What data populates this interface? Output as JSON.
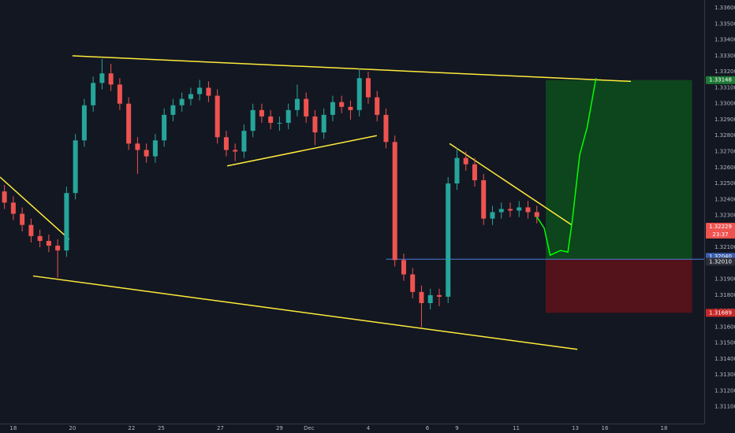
{
  "chart_data": {
    "type": "candlestick",
    "up_color": "#26a69a",
    "down_color": "#ef5350",
    "x": [
      -0.3,
      0,
      0.3,
      0.6,
      0.9,
      1.2,
      1.5,
      1.8,
      2.1,
      2.4,
      2.7,
      3,
      3.3,
      3.6,
      3.9,
      4.2,
      4.5,
      4.8,
      5.1,
      5.4,
      5.7,
      6,
      6.3,
      6.6,
      6.9,
      7.2,
      7.5,
      7.8,
      8.1,
      8.4,
      8.7,
      9,
      9.3,
      9.6,
      9.9,
      10.2,
      10.5,
      10.8,
      11.1,
      11.4,
      11.7,
      12,
      12.3,
      12.6,
      12.9,
      13.2,
      13.5,
      13.8,
      14.1,
      14.4,
      14.7,
      15,
      15.3,
      15.6,
      15.9,
      16.2,
      16.5,
      16.8,
      17.1,
      17.4,
      17.7
    ],
    "open": [
      1.3245,
      1.3238,
      1.3231,
      1.3224,
      1.3217,
      1.3214,
      1.3211,
      1.3208,
      1.3244,
      1.3277,
      1.3299,
      1.3313,
      1.3319,
      1.3312,
      1.33,
      1.3275,
      1.3271,
      1.3267,
      1.3277,
      1.3293,
      1.3299,
      1.3303,
      1.3306,
      1.331,
      1.3305,
      1.3279,
      1.3271,
      1.327,
      1.3283,
      1.3296,
      1.3292,
      1.3288,
      1.3288,
      1.3296,
      1.3303,
      1.3292,
      1.3282,
      1.3293,
      1.3301,
      1.3298,
      1.3296,
      1.3316,
      1.3304,
      1.3293,
      1.3276,
      1.3202,
      1.3193,
      1.3182,
      1.3175,
      1.318,
      1.3179,
      1.325,
      1.3266,
      1.3262,
      1.3252,
      1.3228,
      1.3232,
      1.3234,
      1.3233,
      1.3235,
      1.3232
    ],
    "high": [
      1.3249,
      1.3242,
      1.3235,
      1.3228,
      1.3221,
      1.3218,
      1.3215,
      1.3248,
      1.3281,
      1.3303,
      1.3317,
      1.3328,
      1.3325,
      1.3316,
      1.3304,
      1.3279,
      1.3275,
      1.3281,
      1.3297,
      1.3303,
      1.3307,
      1.331,
      1.3315,
      1.3314,
      1.3309,
      1.3283,
      1.3275,
      1.3287,
      1.33,
      1.33,
      1.3296,
      1.3292,
      1.33,
      1.3312,
      1.3307,
      1.3296,
      1.3297,
      1.3305,
      1.3305,
      1.3302,
      1.3322,
      1.332,
      1.3308,
      1.3297,
      1.328,
      1.3206,
      1.3197,
      1.3186,
      1.3184,
      1.3184,
      1.3254,
      1.3272,
      1.327,
      1.3266,
      1.3256,
      1.3236,
      1.3238,
      1.3238,
      1.3239,
      1.3239,
      1.3236
    ],
    "low": [
      1.3234,
      1.3227,
      1.322,
      1.3213,
      1.321,
      1.3207,
      1.3191,
      1.3204,
      1.324,
      1.3273,
      1.3295,
      1.3309,
      1.3308,
      1.3296,
      1.3271,
      1.3256,
      1.3263,
      1.3263,
      1.3273,
      1.3289,
      1.3295,
      1.3299,
      1.3302,
      1.3301,
      1.3275,
      1.3267,
      1.3264,
      1.3266,
      1.3279,
      1.3288,
      1.3284,
      1.3283,
      1.3284,
      1.3292,
      1.3288,
      1.3274,
      1.3278,
      1.3289,
      1.3294,
      1.329,
      1.3292,
      1.33,
      1.3289,
      1.3272,
      1.3198,
      1.3189,
      1.3178,
      1.316,
      1.3171,
      1.3173,
      1.3175,
      1.3246,
      1.3258,
      1.3248,
      1.3224,
      1.3224,
      1.3228,
      1.3229,
      1.3229,
      1.3228,
      1.3225
    ],
    "close": [
      1.3238,
      1.3231,
      1.3224,
      1.3217,
      1.3214,
      1.3211,
      1.3208,
      1.3244,
      1.3277,
      1.3299,
      1.3313,
      1.3319,
      1.3312,
      1.33,
      1.3275,
      1.3271,
      1.3267,
      1.3277,
      1.3293,
      1.3299,
      1.3303,
      1.3306,
      1.331,
      1.3305,
      1.3279,
      1.3271,
      1.327,
      1.3283,
      1.3296,
      1.3292,
      1.3288,
      1.3288,
      1.3296,
      1.3303,
      1.3292,
      1.3282,
      1.3293,
      1.3301,
      1.3298,
      1.3296,
      1.3316,
      1.3304,
      1.3293,
      1.3276,
      1.3202,
      1.3193,
      1.3182,
      1.3175,
      1.318,
      1.3179,
      1.325,
      1.3266,
      1.3262,
      1.3252,
      1.3228,
      1.3232,
      1.3234,
      1.3233,
      1.3235,
      1.3232,
      1.3229
    ],
    "projection": {
      "color": "#00ff00",
      "x": [
        17.7,
        17.95,
        18.15,
        18.5,
        18.75,
        18.9,
        19.15,
        19.4,
        19.7
      ],
      "values": [
        1.3229,
        1.3222,
        1.3205,
        1.3208,
        1.3207,
        1.3227,
        1.3268,
        1.3285,
        1.3316
      ]
    },
    "trend_lines": {
      "color": "#ffeb3b",
      "segments": [
        {
          "x": [
            -0.45,
            1.89
          ],
          "y": [
            1.3254,
            1.3215
          ]
        },
        {
          "x": [
            2.0,
            20.88
          ],
          "y": [
            1.333,
            1.3314
          ]
        },
        {
          "x": [
            7.23,
            12.29
          ],
          "y": [
            1.3261,
            1.328
          ]
        },
        {
          "x": [
            0.67,
            19.07
          ],
          "y": [
            1.3192,
            1.3146
          ]
        },
        {
          "x": [
            14.75,
            18.88
          ],
          "y": [
            1.3275,
            1.3224
          ]
        }
      ]
    },
    "position": {
      "x": [
        18.0,
        22.95
      ],
      "line_from": 12.6,
      "target": 1.33148,
      "entry": 1.32025,
      "stop": 1.31689,
      "profit_color": "#0d4a1c",
      "loss_color": "#5c121a",
      "entry_color": "#4c7bd9"
    },
    "price_labels": [
      {
        "value": 1.33148,
        "label": "1.33148",
        "color": "#1e7a36"
      },
      {
        "value": 1.32229,
        "label": "1.32229",
        "color": "#ef5350"
      },
      {
        "value": 1.32025,
        "label": "1.32025",
        "color": "#2962ff"
      },
      {
        "value": 1.3204,
        "label": "1.32040",
        "color": "#3b5fb0"
      },
      {
        "value": 1.3201,
        "label": "1.32010",
        "color": "#2a2e39"
      },
      {
        "value": 1.31689,
        "label": "1.31689",
        "color": "#c62828"
      }
    ],
    "countdown": "23:37",
    "xlim": [
      -0.45,
      23.36
    ],
    "ylim": [
      1.30995,
      1.3365
    ],
    "xticks": [
      {
        "value": 0,
        "label": "18"
      },
      {
        "value": 2,
        "label": "20"
      },
      {
        "value": 4,
        "label": "22"
      },
      {
        "value": 5,
        "label": "25"
      },
      {
        "value": 7,
        "label": "27"
      },
      {
        "value": 9,
        "label": "29"
      },
      {
        "value": 10,
        "label": "Dec"
      },
      {
        "value": 12,
        "label": "4"
      },
      {
        "value": 14,
        "label": "6"
      },
      {
        "value": 15,
        "label": "9"
      },
      {
        "value": 17,
        "label": "11"
      },
      {
        "value": 19,
        "label": "13"
      },
      {
        "value": 20,
        "label": "16"
      },
      {
        "value": 22,
        "label": "18"
      }
    ],
    "yticks": [
      {
        "value": 1.311,
        "label": "1.31100"
      },
      {
        "value": 1.312,
        "label": "1.31200"
      },
      {
        "value": 1.313,
        "label": "1.31300"
      },
      {
        "value": 1.314,
        "label": "1.31400"
      },
      {
        "value": 1.315,
        "label": "1.31500"
      },
      {
        "value": 1.316,
        "label": "1.31600"
      },
      {
        "value": 1.317,
        "label": "1.31700"
      },
      {
        "value": 1.318,
        "label": "1.31800"
      },
      {
        "value": 1.319,
        "label": "1.31900"
      },
      {
        "value": 1.32,
        "label": "1.32000"
      },
      {
        "value": 1.321,
        "label": "1.32100"
      },
      {
        "value": 1.322,
        "label": "1.32200"
      },
      {
        "value": 1.323,
        "label": "1.32300"
      },
      {
        "value": 1.324,
        "label": "1.32400"
      },
      {
        "value": 1.325,
        "label": "1.32500"
      },
      {
        "value": 1.326,
        "label": "1.32600"
      },
      {
        "value": 1.327,
        "label": "1.32700"
      },
      {
        "value": 1.328,
        "label": "1.32800"
      },
      {
        "value": 1.329,
        "label": "1.32900"
      },
      {
        "value": 1.33,
        "label": "1.33000"
      },
      {
        "value": 1.331,
        "label": "1.33100"
      },
      {
        "value": 1.332,
        "label": "1.33200"
      },
      {
        "value": 1.333,
        "label": "1.33300"
      },
      {
        "value": 1.334,
        "label": "1.33400"
      },
      {
        "value": 1.335,
        "label": "1.33500"
      },
      {
        "value": 1.336,
        "label": "1.33600"
      }
    ],
    "grid": false
  }
}
